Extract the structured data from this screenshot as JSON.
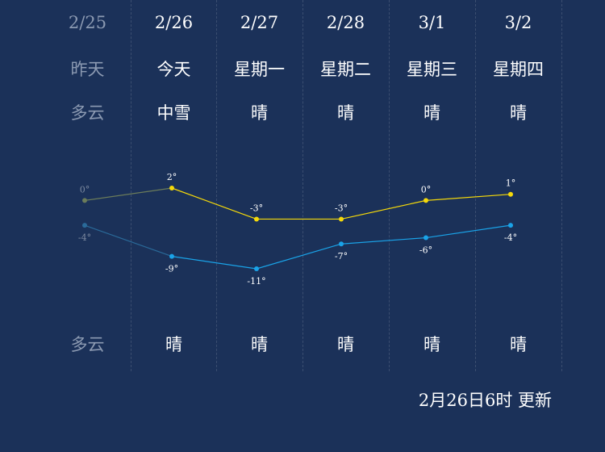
{
  "days": [
    {
      "date": "2/25",
      "weekday": "昨天",
      "day_weather": "多云",
      "night_weather": "多云",
      "past": true
    },
    {
      "date": "2/26",
      "weekday": "今天",
      "day_weather": "中雪",
      "night_weather": "晴",
      "past": false
    },
    {
      "date": "2/27",
      "weekday": "星期一",
      "day_weather": "晴",
      "night_weather": "晴",
      "past": false
    },
    {
      "date": "2/28",
      "weekday": "星期二",
      "day_weather": "晴",
      "night_weather": "晴",
      "past": false
    },
    {
      "date": "3/1",
      "weekday": "星期三",
      "day_weather": "晴",
      "night_weather": "晴",
      "past": false
    },
    {
      "date": "3/2",
      "weekday": "星期四",
      "day_weather": "晴",
      "night_weather": "晴",
      "past": false
    }
  ],
  "chart_data": {
    "type": "line",
    "categories": [
      "2/25",
      "2/26",
      "2/27",
      "2/28",
      "3/1",
      "3/2"
    ],
    "series": [
      {
        "values": [
          0,
          2,
          -3,
          -3,
          0,
          1
        ],
        "labels": [
          "0°",
          "2°",
          "-3°",
          "-3°",
          "0°",
          "1°"
        ],
        "color": "#f5d90a",
        "past_color": "#6b7c5a"
      },
      {
        "values": [
          -4,
          -9,
          -11,
          -7,
          -6,
          -4
        ],
        "labels": [
          "-4°",
          "-9°",
          "-11°",
          "-7°",
          "-6°",
          "-4°"
        ],
        "color": "#1aa3e8",
        "past_color": "#2a6a99"
      }
    ],
    "grid": false,
    "legend": "none"
  },
  "footer": {
    "updated": "2月26日6时 更新"
  }
}
